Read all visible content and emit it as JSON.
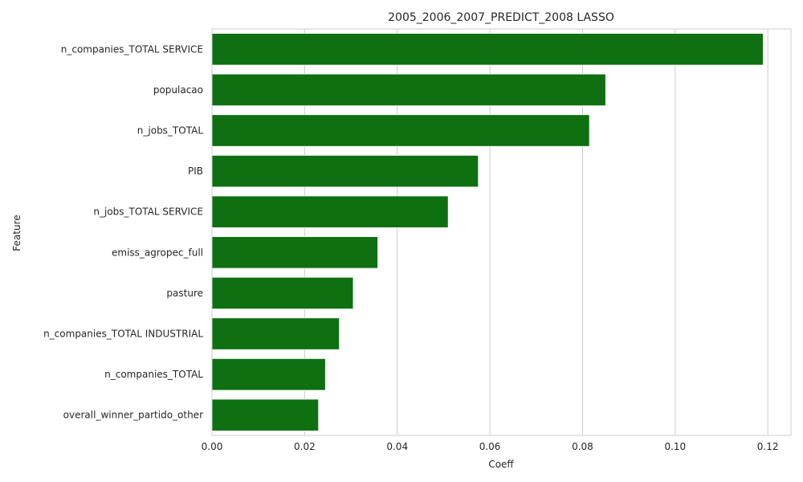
{
  "chart_data": {
    "type": "bar",
    "orientation": "horizontal",
    "title": "2005_2006_2007_PREDICT_2008 LASSO",
    "xlabel": "Coeff",
    "ylabel": "Feature",
    "xlim": [
      0,
      0.125
    ],
    "xticks": [
      "0.00",
      "0.02",
      "0.04",
      "0.06",
      "0.08",
      "0.10",
      "0.12"
    ],
    "grid": true,
    "categories": [
      "n_companies_TOTAL SERVICE",
      "populacao",
      "n_jobs_TOTAL",
      "PIB",
      "n_jobs_TOTAL SERVICE",
      "emiss_agropec_full",
      "pasture",
      "n_companies_TOTAL INDUSTRIAL",
      "n_companies_TOTAL",
      "overall_winner_partido_other"
    ],
    "values": [
      0.119,
      0.085,
      0.0815,
      0.0575,
      0.051,
      0.0358,
      0.0305,
      0.0275,
      0.0245,
      0.023
    ],
    "colors": {
      "bar": "#0e7010",
      "bar_edge": "#ffffff",
      "grid": "#cccccc",
      "spine": "#cccccc",
      "text": "#262626"
    }
  }
}
